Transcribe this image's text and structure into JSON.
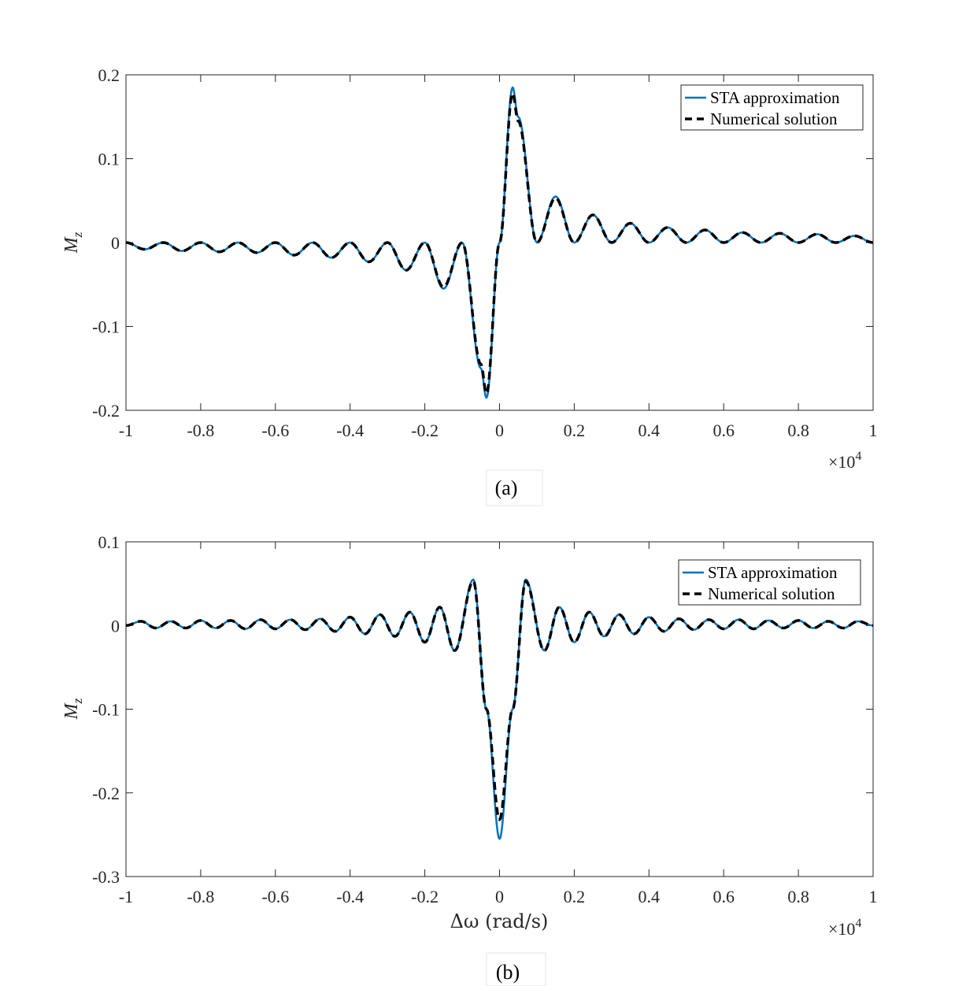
{
  "colors": {
    "sta": "#0072BD",
    "numerical": "#000000",
    "axes": "#262626"
  },
  "chart_data": [
    {
      "type": "line",
      "caption": "(a)",
      "ylabel": "M",
      "ylabel_sub": "z",
      "xlabel": "",
      "x_multiplier": "×10",
      "x_multiplier_exp": "4",
      "xlim": [
        -1,
        1
      ],
      "ylim": [
        -0.2,
        0.2
      ],
      "xticks": [
        "-1",
        "-0.8",
        "-0.6",
        "-0.4",
        "-0.2",
        "0",
        "0.2",
        "0.4",
        "0.6",
        "0.8",
        "1"
      ],
      "yticks": [
        "-0.2",
        "-0.1",
        "0",
        "0.1",
        "0.2"
      ],
      "legend_position": "top-right",
      "series": [
        {
          "name": "STA approximation",
          "style": "solid",
          "x": [
            -1.0,
            -0.95,
            -0.9,
            -0.85,
            -0.8,
            -0.75,
            -0.7,
            -0.65,
            -0.6,
            -0.55,
            -0.5,
            -0.45,
            -0.4,
            -0.35,
            -0.3,
            -0.25,
            -0.2,
            -0.15,
            -0.1,
            -0.05,
            -0.035,
            0.0,
            0.035,
            0.05,
            0.1,
            0.15,
            0.2,
            0.25,
            0.3,
            0.35,
            0.4,
            0.45,
            0.5,
            0.55,
            0.6,
            0.65,
            0.7,
            0.75,
            0.8,
            0.85,
            0.9,
            0.95,
            1.0
          ],
          "y": [
            0.0,
            -0.008,
            0.0,
            -0.01,
            0.0,
            -0.011,
            0.0,
            -0.012,
            0.0,
            -0.015,
            0.0,
            -0.018,
            0.0,
            -0.023,
            0.0,
            -0.033,
            0.0,
            -0.055,
            0.0,
            -0.15,
            -0.185,
            0.0,
            0.185,
            0.15,
            0.0,
            0.055,
            0.0,
            0.033,
            0.0,
            0.023,
            0.0,
            0.018,
            0.0,
            0.015,
            0.0,
            0.012,
            0.0,
            0.011,
            0.0,
            0.01,
            0.0,
            0.008,
            0.0
          ]
        },
        {
          "name": "Numerical solution",
          "style": "dashed",
          "x": [
            -1.0,
            -0.95,
            -0.9,
            -0.85,
            -0.8,
            -0.75,
            -0.7,
            -0.65,
            -0.6,
            -0.55,
            -0.5,
            -0.45,
            -0.4,
            -0.35,
            -0.3,
            -0.25,
            -0.2,
            -0.15,
            -0.1,
            -0.05,
            -0.035,
            0.0,
            0.035,
            0.05,
            0.1,
            0.15,
            0.2,
            0.25,
            0.3,
            0.35,
            0.4,
            0.45,
            0.5,
            0.55,
            0.6,
            0.65,
            0.7,
            0.75,
            0.8,
            0.85,
            0.9,
            0.95,
            1.0
          ],
          "y": [
            0.0,
            -0.008,
            0.0,
            -0.01,
            0.0,
            -0.011,
            0.0,
            -0.012,
            0.0,
            -0.015,
            0.0,
            -0.018,
            0.0,
            -0.023,
            0.0,
            -0.033,
            0.0,
            -0.053,
            0.0,
            -0.145,
            -0.18,
            0.0,
            0.178,
            0.145,
            0.0,
            0.053,
            0.0,
            0.033,
            0.0,
            0.023,
            0.0,
            0.018,
            0.0,
            0.015,
            0.0,
            0.012,
            0.0,
            0.011,
            0.0,
            0.01,
            0.0,
            0.008,
            0.0
          ]
        }
      ]
    },
    {
      "type": "line",
      "caption": "(b)",
      "ylabel": "M",
      "ylabel_sub": "z",
      "xlabel": "Δω (rad/s)",
      "x_multiplier": "×10",
      "x_multiplier_exp": "4",
      "xlim": [
        -1,
        1
      ],
      "ylim": [
        -0.3,
        0.1
      ],
      "xticks": [
        "-1",
        "-0.8",
        "-0.6",
        "-0.4",
        "-0.2",
        "0",
        "0.2",
        "0.4",
        "0.6",
        "0.8",
        "1"
      ],
      "yticks": [
        "-0.3",
        "-0.2",
        "-0.1",
        "0",
        "0.1"
      ],
      "legend_position": "top-right",
      "series": [
        {
          "name": "STA approximation",
          "style": "solid",
          "x": [
            -1.0,
            -0.96,
            -0.92,
            -0.88,
            -0.84,
            -0.8,
            -0.76,
            -0.72,
            -0.68,
            -0.64,
            -0.6,
            -0.56,
            -0.52,
            -0.48,
            -0.44,
            -0.4,
            -0.36,
            -0.32,
            -0.28,
            -0.24,
            -0.2,
            -0.16,
            -0.12,
            -0.07,
            -0.035,
            0.0,
            0.035,
            0.07,
            0.12,
            0.16,
            0.2,
            0.24,
            0.28,
            0.32,
            0.36,
            0.4,
            0.44,
            0.48,
            0.52,
            0.56,
            0.6,
            0.64,
            0.68,
            0.72,
            0.76,
            0.8,
            0.84,
            0.88,
            0.92,
            0.96,
            1.0
          ],
          "y": [
            0.0,
            0.005,
            -0.003,
            0.005,
            -0.003,
            0.006,
            -0.003,
            0.006,
            -0.004,
            0.007,
            -0.004,
            0.007,
            -0.005,
            0.008,
            -0.007,
            0.01,
            -0.01,
            0.013,
            -0.013,
            0.016,
            -0.02,
            0.022,
            -0.03,
            0.055,
            -0.1,
            -0.255,
            -0.1,
            0.055,
            -0.03,
            0.022,
            -0.02,
            0.016,
            -0.013,
            0.013,
            -0.01,
            0.01,
            -0.007,
            0.008,
            -0.005,
            0.007,
            -0.004,
            0.007,
            -0.004,
            0.006,
            -0.003,
            0.006,
            -0.003,
            0.005,
            -0.003,
            0.005,
            0.0
          ]
        },
        {
          "name": "Numerical solution",
          "style": "dashed",
          "x": [
            -1.0,
            -0.96,
            -0.92,
            -0.88,
            -0.84,
            -0.8,
            -0.76,
            -0.72,
            -0.68,
            -0.64,
            -0.6,
            -0.56,
            -0.52,
            -0.48,
            -0.44,
            -0.4,
            -0.36,
            -0.32,
            -0.28,
            -0.24,
            -0.2,
            -0.16,
            -0.12,
            -0.07,
            -0.035,
            0.0,
            0.035,
            0.07,
            0.12,
            0.16,
            0.2,
            0.24,
            0.28,
            0.32,
            0.36,
            0.4,
            0.44,
            0.48,
            0.52,
            0.56,
            0.6,
            0.64,
            0.68,
            0.72,
            0.76,
            0.8,
            0.84,
            0.88,
            0.92,
            0.96,
            1.0
          ],
          "y": [
            0.0,
            0.005,
            -0.003,
            0.005,
            -0.003,
            0.006,
            -0.003,
            0.006,
            -0.004,
            0.007,
            -0.004,
            0.007,
            -0.005,
            0.008,
            -0.007,
            0.01,
            -0.01,
            0.013,
            -0.013,
            0.016,
            -0.02,
            0.022,
            -0.03,
            0.053,
            -0.1,
            -0.232,
            -0.1,
            0.053,
            -0.03,
            0.022,
            -0.02,
            0.016,
            -0.013,
            0.013,
            -0.01,
            0.01,
            -0.007,
            0.008,
            -0.005,
            0.007,
            -0.004,
            0.007,
            -0.004,
            0.006,
            -0.003,
            0.006,
            -0.003,
            0.005,
            -0.003,
            0.005,
            0.0
          ]
        }
      ]
    }
  ]
}
